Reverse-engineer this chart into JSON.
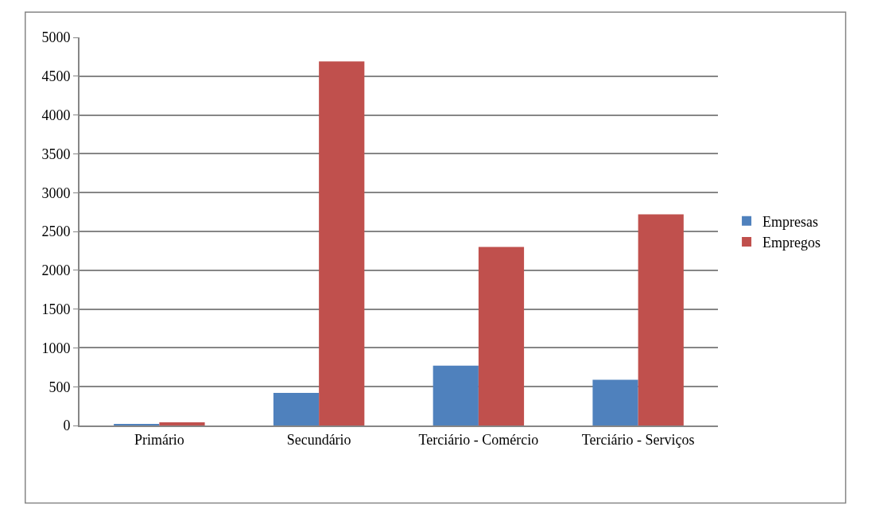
{
  "chart_data": {
    "type": "bar",
    "categories": [
      "Primário",
      "Secundário",
      "Terciário - Comércio",
      "Terciário - Serviços"
    ],
    "series": [
      {
        "name": "Empresas",
        "color": "#4f81bd",
        "values": [
          20,
          420,
          770,
          590
        ]
      },
      {
        "name": "Empregos",
        "color": "#c0504d",
        "values": [
          40,
          4690,
          2300,
          2720
        ]
      }
    ],
    "ylim": [
      0,
      5000
    ],
    "yticks": [
      0,
      500,
      1000,
      1500,
      2000,
      2500,
      3000,
      3500,
      4000,
      4500,
      5000
    ],
    "grid": "y",
    "legend": "right"
  }
}
